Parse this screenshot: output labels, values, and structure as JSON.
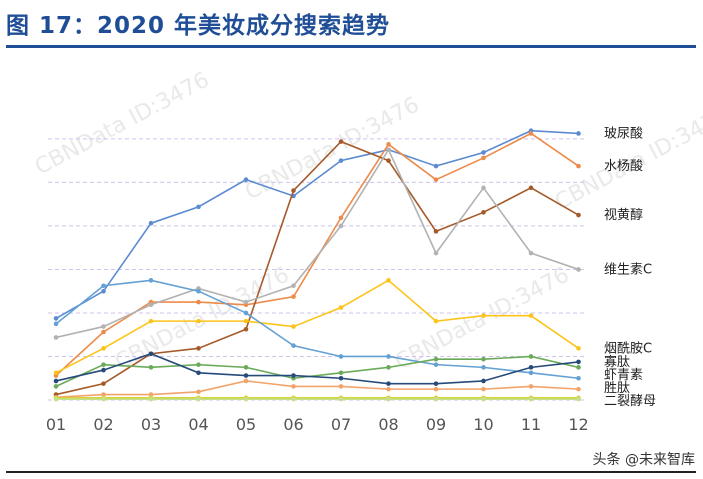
{
  "figure": {
    "title": "图 17：2020 年美妆成分搜索趋势",
    "source_credit": "头条 @未来智库",
    "watermark": "CBNData ID:3476"
  },
  "colors": {
    "title": "#1f4e96",
    "grid": "#cdc3ee"
  },
  "chart_data": {
    "type": "line",
    "categories": [
      "01",
      "02",
      "03",
      "04",
      "05",
      "06",
      "07",
      "08",
      "09",
      "10",
      "11",
      "12"
    ],
    "ylim": [
      0,
      100
    ],
    "grid": "horizontal dashed",
    "legend": "none; series labels at right end of each line",
    "series": [
      {
        "name": "玻尿酸",
        "color": "#5b8bd0",
        "values": [
          30,
          40,
          65,
          71,
          81,
          75,
          88,
          92,
          86,
          91,
          99,
          98
        ]
      },
      {
        "name": "水杨酸",
        "color": "#ed8a4a",
        "values": [
          9,
          25,
          36,
          36,
          35,
          38,
          67,
          94,
          81,
          89,
          98,
          86
        ]
      },
      {
        "name": "视黄醇",
        "color": "#a65a2a",
        "values": [
          2,
          6,
          17,
          19,
          26,
          77,
          95,
          88,
          62,
          69,
          78,
          68
        ]
      },
      {
        "name": "维生素C",
        "color": "#b2b2b2",
        "values": [
          23,
          27,
          35,
          41,
          36,
          42,
          64,
          92,
          54,
          78,
          54,
          48
        ]
      },
      {
        "name": "烟酰胺C",
        "color": "#fcc419",
        "values": [
          10,
          19,
          29,
          29,
          29,
          27,
          34,
          44,
          29,
          31,
          31,
          19
        ]
      },
      {
        "name": "胜肽",
        "color": "#63a0d4",
        "values": [
          28,
          42,
          44,
          40,
          32,
          20,
          16,
          16,
          13,
          12,
          10,
          8
        ]
      },
      {
        "name": "虾青素",
        "color": "#6aaa58",
        "values": [
          5,
          13,
          12,
          13,
          12,
          8,
          10,
          12,
          15,
          15,
          16,
          12
        ]
      },
      {
        "name": "寡肽",
        "color": "#264a7a",
        "values": [
          7,
          11,
          17,
          10,
          9,
          9,
          8,
          6,
          6,
          7,
          12,
          14
        ]
      },
      {
        "name": "二裂酵母",
        "color": "#f2a36a",
        "values": [
          1,
          2,
          2,
          3,
          7,
          5,
          5,
          4,
          4,
          4,
          5,
          4
        ]
      },
      {
        "name": "",
        "color": "#d6d23a",
        "values": [
          0.8,
          0.8,
          0.8,
          0.8,
          0.8,
          0.8,
          0.8,
          0.8,
          0.8,
          0.8,
          0.8,
          0.8
        ]
      },
      {
        "name": "",
        "color": "#c5e08a",
        "values": [
          0.3,
          0.3,
          0.3,
          0.3,
          0.3,
          0.3,
          0.3,
          0.3,
          0.3,
          0.3,
          0.3,
          0.3
        ]
      }
    ]
  }
}
